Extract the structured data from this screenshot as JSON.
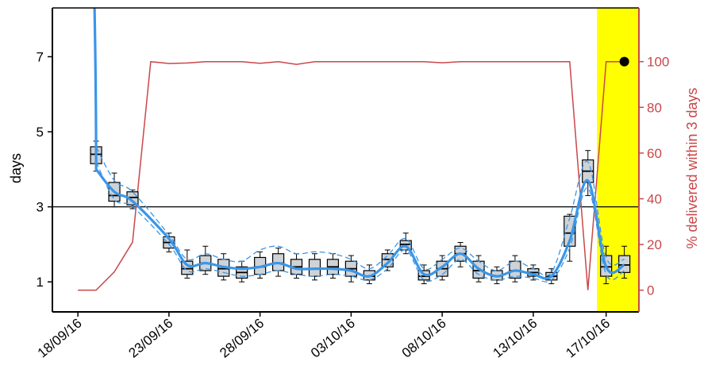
{
  "chart_data": {
    "type": "boxplot",
    "title": "",
    "ylabel_left": "days",
    "ylabel_right": "% delivered within 3 days",
    "left_axis": {
      "ylim": [
        0.2,
        8.3
      ],
      "ticks": [
        1,
        3,
        5,
        7
      ],
      "tick_labels": [
        "1",
        "3",
        "5",
        "7"
      ]
    },
    "right_axis": {
      "ylim": [
        -9.5,
        123.5
      ],
      "ticks": [
        0,
        20,
        40,
        60,
        80,
        100
      ],
      "tick_labels": [
        "0",
        "20",
        "40",
        "60",
        "80",
        "100"
      ]
    },
    "x_axis": {
      "xlim": [
        -1.4,
        30.8
      ],
      "ticks": [
        0,
        5,
        10,
        15,
        20,
        25,
        29
      ],
      "tick_labels": [
        "18/09/16",
        "23/09/16",
        "28/09/16",
        "03/10/16",
        "08/10/16",
        "13/10/16",
        "17/10/16"
      ]
    },
    "reference_line_days": 3,
    "highlight_region": {
      "x_from": 28.5,
      "x_to": 30.8,
      "color": "#ffff00"
    },
    "boxes": [
      {
        "x": 1,
        "whisker_low": 3.95,
        "q1": 4.15,
        "median": 4.4,
        "q3": 4.6,
        "whisker_high": 4.75
      },
      {
        "x": 2,
        "whisker_low": 3.0,
        "q1": 3.15,
        "median": 3.3,
        "q3": 3.65,
        "whisker_high": 3.9
      },
      {
        "x": 3,
        "whisker_low": 2.95,
        "q1": 3.05,
        "median": 3.25,
        "q3": 3.4,
        "whisker_high": 3.45
      },
      {
        "x": 5,
        "whisker_low": 1.8,
        "q1": 1.9,
        "median": 2.05,
        "q3": 2.2,
        "whisker_high": 2.3
      },
      {
        "x": 6,
        "whisker_low": 1.1,
        "q1": 1.2,
        "median": 1.35,
        "q3": 1.55,
        "whisker_high": 1.85
      },
      {
        "x": 7,
        "whisker_low": 1.2,
        "q1": 1.3,
        "median": 1.5,
        "q3": 1.7,
        "whisker_high": 1.95
      },
      {
        "x": 8,
        "whisker_low": 1.05,
        "q1": 1.15,
        "median": 1.35,
        "q3": 1.6,
        "whisker_high": 1.75
      },
      {
        "x": 9,
        "whisker_low": 1.0,
        "q1": 1.1,
        "median": 1.25,
        "q3": 1.4,
        "whisker_high": 1.55
      },
      {
        "x": 10,
        "whisker_low": 1.1,
        "q1": 1.2,
        "median": 1.4,
        "q3": 1.65,
        "whisker_high": 1.8
      },
      {
        "x": 11,
        "whisker_low": 1.15,
        "q1": 1.3,
        "median": 1.5,
        "q3": 1.75,
        "whisker_high": 1.9
      },
      {
        "x": 12,
        "whisker_low": 1.1,
        "q1": 1.2,
        "median": 1.4,
        "q3": 1.6,
        "whisker_high": 1.75
      },
      {
        "x": 13,
        "whisker_low": 1.05,
        "q1": 1.15,
        "median": 1.35,
        "q3": 1.6,
        "whisker_high": 1.75
      },
      {
        "x": 14,
        "whisker_low": 1.1,
        "q1": 1.2,
        "median": 1.4,
        "q3": 1.6,
        "whisker_high": 1.75
      },
      {
        "x": 15,
        "whisker_low": 1.0,
        "q1": 1.15,
        "median": 1.35,
        "q3": 1.55,
        "whisker_high": 1.7
      },
      {
        "x": 16,
        "whisker_low": 0.95,
        "q1": 1.05,
        "median": 1.15,
        "q3": 1.3,
        "whisker_high": 1.45
      },
      {
        "x": 17,
        "whisker_low": 1.3,
        "q1": 1.4,
        "median": 1.6,
        "q3": 1.75,
        "whisker_high": 1.85
      },
      {
        "x": 18,
        "whisker_low": 1.75,
        "q1": 1.85,
        "median": 2.0,
        "q3": 2.1,
        "whisker_high": 2.3
      },
      {
        "x": 19,
        "whisker_low": 0.95,
        "q1": 1.05,
        "median": 1.15,
        "q3": 1.3,
        "whisker_high": 1.45
      },
      {
        "x": 20,
        "whisker_low": 1.05,
        "q1": 1.15,
        "median": 1.35,
        "q3": 1.55,
        "whisker_high": 1.7
      },
      {
        "x": 21,
        "whisker_low": 1.4,
        "q1": 1.55,
        "median": 1.75,
        "q3": 1.95,
        "whisker_high": 2.05
      },
      {
        "x": 22,
        "whisker_low": 1.0,
        "q1": 1.1,
        "median": 1.3,
        "q3": 1.55,
        "whisker_high": 1.7
      },
      {
        "x": 23,
        "whisker_low": 0.95,
        "q1": 1.05,
        "median": 1.15,
        "q3": 1.3,
        "whisker_high": 1.4
      },
      {
        "x": 24,
        "whisker_low": 1.0,
        "q1": 1.1,
        "median": 1.3,
        "q3": 1.55,
        "whisker_high": 1.7
      },
      {
        "x": 25,
        "whisker_low": 1.05,
        "q1": 1.15,
        "median": 1.25,
        "q3": 1.35,
        "whisker_high": 1.45
      },
      {
        "x": 26,
        "whisker_low": 0.95,
        "q1": 1.05,
        "median": 1.15,
        "q3": 1.25,
        "whisker_high": 1.35
      },
      {
        "x": 27,
        "whisker_low": 1.55,
        "q1": 1.95,
        "median": 2.3,
        "q3": 2.75,
        "whisker_high": 2.8
      },
      {
        "x": 28,
        "whisker_low": 3.3,
        "q1": 3.65,
        "median": 3.95,
        "q3": 4.25,
        "whisker_high": 4.5
      },
      {
        "x": 29,
        "whisker_low": 0.95,
        "q1": 1.15,
        "median": 1.4,
        "q3": 1.7,
        "whisker_high": 1.95
      },
      {
        "x": 30,
        "whisker_low": 1.1,
        "q1": 1.25,
        "median": 1.45,
        "q3": 1.7,
        "whisker_high": 1.95
      }
    ],
    "series": [
      {
        "axis": "left",
        "style": "smoothed",
        "x": [
          1,
          2,
          3,
          5,
          6,
          7,
          8,
          9,
          10,
          11,
          12,
          13,
          14,
          15,
          16,
          17,
          18,
          19,
          20,
          21,
          22,
          23,
          24,
          25,
          26,
          27,
          28,
          29,
          30
        ],
        "y": [
          4.0,
          3.4,
          3.15,
          2.15,
          1.45,
          1.5,
          1.4,
          1.35,
          1.4,
          1.5,
          1.35,
          1.35,
          1.35,
          1.3,
          1.15,
          1.5,
          1.95,
          1.2,
          1.4,
          1.75,
          1.35,
          1.15,
          1.3,
          1.2,
          1.15,
          2.1,
          3.7,
          1.4,
          1.45
        ],
        "color": "#3a96e8"
      },
      {
        "axis": "left",
        "style": "dashed",
        "x": [
          1,
          2,
          3,
          5,
          6,
          7,
          8,
          9,
          10,
          11,
          12,
          13,
          14,
          15,
          16,
          17,
          18,
          19,
          20,
          21,
          22,
          23,
          24,
          25,
          26,
          27,
          28,
          29,
          30
        ],
        "y": [
          4.6,
          3.7,
          3.4,
          2.25,
          1.6,
          1.75,
          1.6,
          1.55,
          1.85,
          1.95,
          1.75,
          1.8,
          1.75,
          1.6,
          1.35,
          1.7,
          2.15,
          1.35,
          1.6,
          1.9,
          1.55,
          1.3,
          1.55,
          1.35,
          1.25,
          2.7,
          4.2,
          1.65,
          1.6
        ],
        "color": "#3a96e8"
      },
      {
        "axis": "left",
        "style": "dashed",
        "x": [
          1,
          2,
          3,
          5,
          6,
          7,
          8,
          9,
          10,
          11,
          12,
          13,
          14,
          15,
          16,
          17,
          18,
          19,
          20,
          21,
          22,
          23,
          24,
          25,
          26,
          27,
          28,
          29,
          30
        ],
        "y": [
          4.2,
          3.2,
          3.0,
          2.0,
          1.3,
          1.35,
          1.25,
          1.15,
          1.2,
          1.3,
          1.2,
          1.15,
          1.2,
          1.15,
          1.05,
          1.35,
          1.85,
          1.05,
          1.2,
          1.6,
          1.2,
          1.05,
          1.15,
          1.1,
          1.05,
          1.9,
          3.5,
          1.2,
          1.3
        ],
        "color": "#3a96e8"
      },
      {
        "axis": "right",
        "style": "solid",
        "name": "% delivered within 3 days",
        "x": [
          0,
          1,
          2,
          3,
          4,
          5,
          6,
          7,
          8,
          9,
          10,
          11,
          12,
          13,
          14,
          15,
          16,
          17,
          18,
          19,
          20,
          21,
          22,
          23,
          24,
          25,
          26,
          27,
          28,
          29,
          30
        ],
        "y": [
          0,
          0,
          8,
          21,
          100,
          99.2,
          99.4,
          100,
          100,
          100,
          99.3,
          100,
          98.8,
          100,
          100,
          100,
          100,
          100,
          100,
          100,
          99.5,
          100,
          100,
          100,
          100,
          100,
          100,
          100,
          0,
          100,
          100
        ],
        "color": "#c9474a"
      }
    ],
    "highlight_point": {
      "x": 30,
      "axis": "right",
      "y": 100,
      "color": "#000000"
    }
  }
}
